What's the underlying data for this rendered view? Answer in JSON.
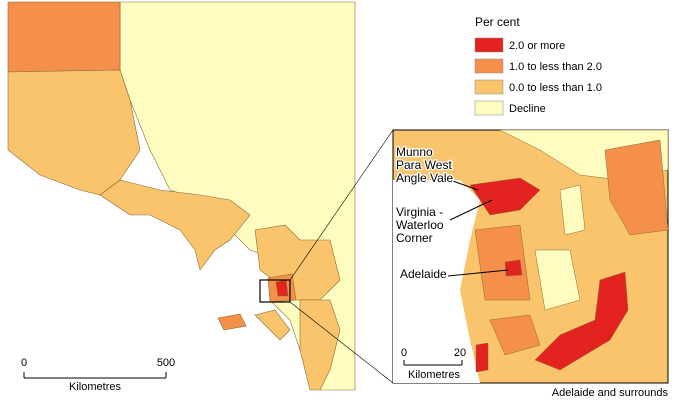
{
  "legend": {
    "title": "Per cent",
    "items": [
      {
        "label": "2.0 or more",
        "color": "#e3231f"
      },
      {
        "label": "1.0 to less than 2.0",
        "color": "#f4904a"
      },
      {
        "label": "0.0 to less than 1.0",
        "color": "#f9c46c"
      },
      {
        "label": "Decline",
        "color": "#fefdbf"
      }
    ]
  },
  "main_scale": {
    "start": "0",
    "end": "500",
    "unit": "Kilometres"
  },
  "inset": {
    "caption": "Adelaide and surrounds",
    "labels": [
      {
        "lines": [
          "Munno",
          "Para West",
          "Angle Vale"
        ]
      },
      {
        "lines": [
          "Virginia -",
          "Waterloo",
          "Corner"
        ]
      },
      {
        "lines": [
          "Adelaide"
        ]
      }
    ],
    "scale": {
      "start": "0",
      "end": "20",
      "unit": "Kilometres"
    }
  }
}
